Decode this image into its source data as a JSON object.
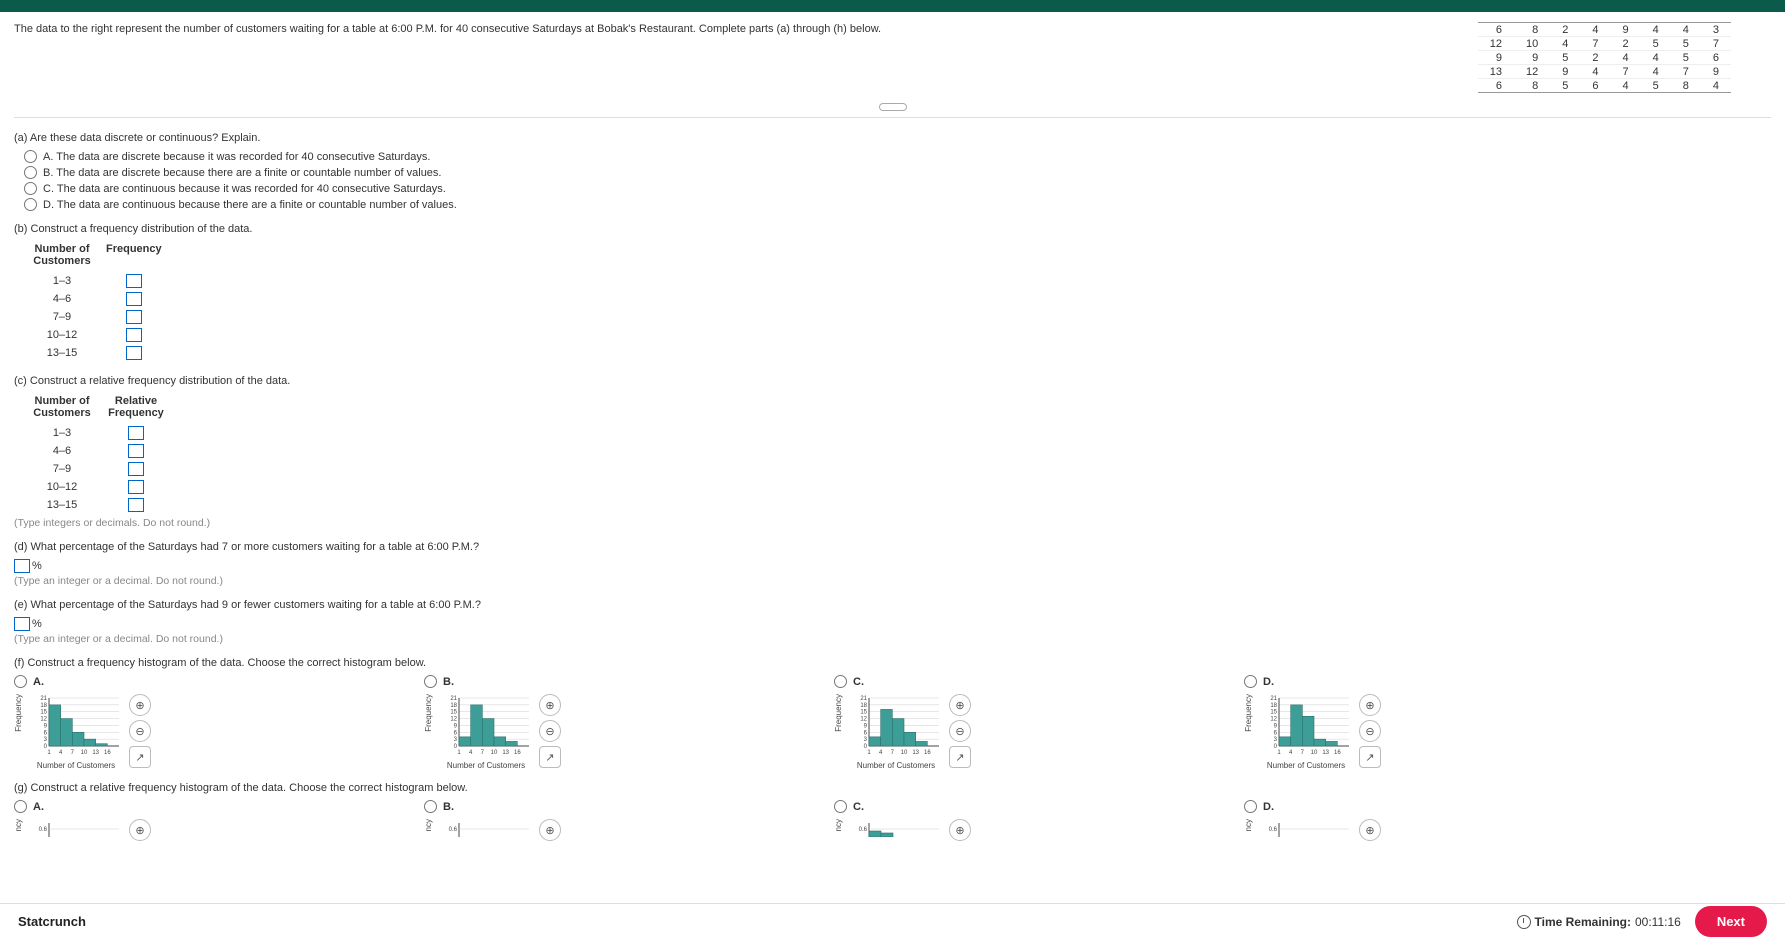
{
  "intro": "The data to the right represent the number of customers waiting for a table at 6:00 P.M. for 40 consecutive Saturdays at Bobak's Restaurant. Complete parts (a) through (h) below.",
  "data_grid": [
    [
      6,
      8,
      2,
      4,
      9,
      4,
      4,
      3
    ],
    [
      12,
      10,
      4,
      7,
      2,
      5,
      5,
      7
    ],
    [
      9,
      9,
      5,
      2,
      4,
      4,
      5,
      6
    ],
    [
      13,
      12,
      9,
      4,
      7,
      4,
      7,
      9
    ],
    [
      6,
      8,
      5,
      6,
      4,
      5,
      8,
      4
    ]
  ],
  "a": {
    "prompt": "(a) Are these data discrete or continuous? Explain.",
    "options": [
      "A.  The data are discrete because it was recorded for 40 consecutive Saturdays.",
      "B.  The data are discrete because there are a finite or countable number of values.",
      "C.  The data are continuous because it was recorded for 40 consecutive Saturdays.",
      "D.  The data are continuous because there are a finite or countable number of values."
    ]
  },
  "b": {
    "prompt": "(b) Construct a frequency distribution of the data.",
    "col1": "Number of Customers",
    "col2": "Frequency",
    "rows": [
      "1–3",
      "4–6",
      "7–9",
      "10–12",
      "13–15"
    ]
  },
  "c": {
    "prompt": "(c) Construct a relative frequency distribution of the data.",
    "col1": "Number of Customers",
    "col2": "Relative Frequency",
    "rows": [
      "1–3",
      "4–6",
      "7–9",
      "10–12",
      "13–15"
    ],
    "hint": "(Type integers or decimals. Do not round.)"
  },
  "d": {
    "prompt": "(d) What percentage of the Saturdays had 7 or more customers waiting for a table at 6:00 P.M.?",
    "suffix": "%",
    "hint": "(Type an integer or a decimal. Do not round.)"
  },
  "e": {
    "prompt": "(e) What percentage of the Saturdays had 9 or fewer customers waiting for a table at 6:00 P.M.?",
    "suffix": "%",
    "hint": "(Type an integer or a decimal. Do not round.)"
  },
  "f": {
    "prompt": "(f) Construct a frequency histogram of the data. Choose the correct histogram below.",
    "labels": [
      "A.",
      "B.",
      "C.",
      "D."
    ],
    "chart": {
      "type": "histogram",
      "width": 90,
      "height": 62,
      "bg": "#ffffff",
      "grid": "#cfcfcf",
      "bar_fill": "#3d9e97",
      "bar_stroke": "#2b726c",
      "y_ticks": [
        0,
        3,
        6,
        9,
        12,
        15,
        18,
        21
      ],
      "x_ticks": [
        "1",
        "4",
        "7",
        "10",
        "13",
        "16"
      ],
      "xlabel": "Number of Customers",
      "ylabel": "Frequency",
      "tick_font": 6,
      "series": {
        "A": [
          18,
          12,
          6,
          3,
          1,
          0
        ],
        "B": [
          4,
          18,
          12,
          4,
          2,
          0
        ],
        "C": [
          4,
          16,
          12,
          6,
          2,
          0
        ],
        "D": [
          4,
          18,
          13,
          3,
          2,
          0
        ]
      }
    }
  },
  "g": {
    "prompt": "(g) Construct a relative frequency histogram of the data. Choose the correct histogram below.",
    "labels": [
      "A.",
      "B.",
      "C.",
      "D."
    ],
    "y_label_stub": "0.6",
    "ylabel": "ncy"
  },
  "footer": {
    "left": "Statcrunch",
    "time_label": "Time Remaining:",
    "time_value": "00:11:16",
    "next": "Next"
  },
  "icons": {
    "zoom_in": "⊕",
    "zoom_out": "⊖",
    "popout": "↗"
  }
}
